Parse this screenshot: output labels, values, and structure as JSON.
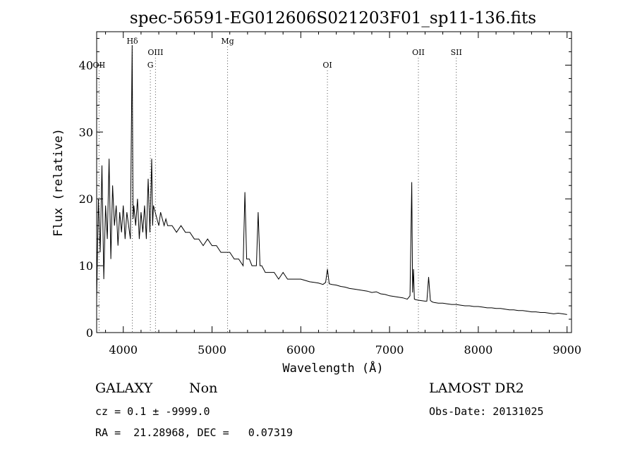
{
  "chart_data": {
    "type": "line",
    "title": "spec-56591-EG012606S021203F01_sp11-136.fits",
    "xlabel": "Wavelength (Å)",
    "ylabel": "Flux (relative)",
    "xlim": [
      3700,
      9050
    ],
    "ylim": [
      0,
      45
    ],
    "x_ticks": [
      4000,
      5000,
      6000,
      7000,
      8000,
      9000
    ],
    "y_ticks": [
      0,
      10,
      20,
      30,
      40
    ],
    "grid": false,
    "series": [
      {
        "x": [
          3700,
          3720,
          3740,
          3760,
          3780,
          3800,
          3820,
          3840,
          3860,
          3880,
          3900,
          3920,
          3940,
          3960,
          3980,
          4000,
          4020,
          4040,
          4060,
          4080,
          4100,
          4110,
          4120,
          4140,
          4160,
          4180,
          4200,
          4220,
          4240,
          4260,
          4280,
          4300,
          4320,
          4330,
          4340,
          4360,
          4380,
          4400,
          4420,
          4440,
          4460,
          4480,
          4500,
          4550,
          4600,
          4650,
          4700,
          4750,
          4800,
          4850,
          4900,
          4950,
          5000,
          5050,
          5100,
          5150,
          5200,
          5250,
          5300,
          5350,
          5370,
          5390,
          5420,
          5450,
          5500,
          5520,
          5540,
          5560,
          5600,
          5650,
          5700,
          5750,
          5800,
          5850,
          5900,
          5950,
          6000,
          6050,
          6100,
          6150,
          6200,
          6250,
          6280,
          6300,
          6320,
          6350,
          6400,
          6450,
          6500,
          6550,
          6600,
          6650,
          6700,
          6750,
          6800,
          6850,
          6900,
          6950,
          7000,
          7050,
          7100,
          7150,
          7200,
          7230,
          7250,
          7260,
          7270,
          7280,
          7300,
          7350,
          7400,
          7420,
          7440,
          7460,
          7480,
          7500,
          7550,
          7600,
          7650,
          7700,
          7750,
          7800,
          7850,
          7900,
          7950,
          8000,
          8050,
          8100,
          8150,
          8200,
          8250,
          8300,
          8350,
          8400,
          8450,
          8500,
          8550,
          8600,
          8650,
          8700,
          8750,
          8800,
          8850,
          8900,
          8950,
          9000
        ],
        "y": [
          5,
          20,
          12,
          25,
          8,
          19,
          14,
          26,
          11,
          22,
          16,
          19,
          13,
          18,
          15,
          19,
          14,
          18,
          16,
          14,
          43,
          17,
          19,
          16,
          20,
          14,
          18,
          15,
          19,
          14,
          23,
          15,
          26,
          16,
          19,
          18,
          17,
          16,
          18,
          17,
          16,
          17,
          16,
          16,
          15,
          16,
          15,
          15,
          14,
          14,
          13,
          14,
          13,
          13,
          12,
          12,
          12,
          11,
          11,
          10,
          21,
          11,
          11,
          10,
          10,
          18,
          10,
          10,
          9,
          9,
          9,
          8,
          9,
          8,
          8,
          8,
          8,
          7.8,
          7.6,
          7.5,
          7.4,
          7.2,
          7.5,
          9.5,
          7.3,
          7.2,
          7.1,
          6.9,
          6.8,
          6.6,
          6.5,
          6.4,
          6.3,
          6.2,
          6.0,
          6.1,
          5.8,
          5.7,
          5.5,
          5.4,
          5.3,
          5.2,
          5.0,
          5.5,
          22.5,
          6,
          9.5,
          5,
          4.9,
          4.8,
          4.7,
          4.7,
          8.3,
          4.8,
          4.6,
          4.5,
          4.4,
          4.4,
          4.3,
          4.2,
          4.2,
          4.1,
          4.0,
          4.0,
          3.9,
          3.9,
          3.8,
          3.7,
          3.7,
          3.6,
          3.6,
          3.5,
          3.4,
          3.4,
          3.3,
          3.3,
          3.2,
          3.1,
          3.1,
          3.0,
          3.0,
          2.9,
          2.8,
          2.9,
          2.8,
          2.7
        ]
      }
    ],
    "lines": [
      {
        "label": "Hδ",
        "x": 4102,
        "row": 0
      },
      {
        "label": "OIII",
        "x": 4363,
        "row": 1
      },
      {
        "label": "Mg",
        "x": 5175,
        "row": 0
      },
      {
        "label": "OII",
        "x": 7325,
        "row": 1
      },
      {
        "label": "SII",
        "x": 7752,
        "row": 1
      },
      {
        "label": "OII",
        "x": 3727,
        "row": 2
      },
      {
        "label": "G",
        "x": 4305,
        "row": 2
      },
      {
        "label": "OI",
        "x": 6300,
        "row": 2
      }
    ]
  },
  "footer": {
    "class_label": "GALAXY",
    "subclass_label": "Non",
    "survey": "LAMOST DR2",
    "cz": "cz = 0.1 ± -9999.0",
    "obs_date": "Obs-Date: 20131025",
    "radec": "RA =  21.28968, DEC =   0.07319"
  }
}
